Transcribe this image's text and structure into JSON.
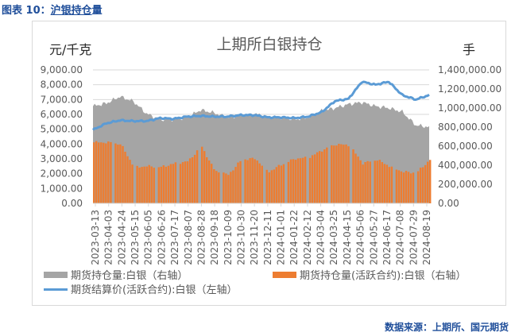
{
  "caption": {
    "prefix": "图表 10：",
    "title": "沪银持仓",
    "suffix": "量"
  },
  "source": "数据来源：上期所、国元期货",
  "chart_data": {
    "type": "combo",
    "title": "上期所白银持仓",
    "ylabel_left": "元/千克",
    "ylabel_right": "手",
    "ylim_left": [
      0,
      9000
    ],
    "ylim_right": [
      0,
      1400000
    ],
    "yticks_left": [
      "9,000.00",
      "8,000.00",
      "7,000.00",
      "6,000.00",
      "5,000.00",
      "4,000.00",
      "3,000.00",
      "2,000.00",
      "1,000.00",
      "0.00"
    ],
    "yticks_right": [
      "1,400,000.00",
      "1,200,000.00",
      "1,000,000.00",
      "800,000.00",
      "600,000.00",
      "400,000.00",
      "200,000.00",
      "0.00"
    ],
    "grid": true,
    "legend_position": "bottom",
    "categories": [
      "2023-03-13",
      "2023-04-03",
      "2023-04-24",
      "2023-05-15",
      "2023-06-05",
      "2023-06-26",
      "2023-07-17",
      "2023-08-07",
      "2023-08-28",
      "2023-09-18",
      "2023-10-09",
      "2023-10-30",
      "2023-11-20",
      "2023-12-11",
      "2024-01-01",
      "2024-01-22",
      "2024-02-12",
      "2024-03-04",
      "2024-03-25",
      "2024-04-15",
      "2024-05-06",
      "2024-05-27",
      "2024-06-17",
      "2024-07-08",
      "2024-07-29",
      "2024-08-19"
    ],
    "series": [
      {
        "name": "期货持仓量:白银（右轴）",
        "type": "area",
        "axis": "right",
        "color": "#a5a5a5",
        "values": [
          1020000,
          1050000,
          1120000,
          1070000,
          940000,
          880000,
          880000,
          900000,
          980000,
          950000,
          900000,
          920000,
          940000,
          910000,
          900000,
          880000,
          900000,
          970000,
          1000000,
          1040000,
          1060000,
          1020000,
          1000000,
          960000,
          820000,
          800000
        ]
      },
      {
        "name": "期货持仓量(活跃合约):白银（右轴）",
        "type": "bar",
        "axis": "right",
        "color": "#ed7d31",
        "values": [
          640000,
          640000,
          620000,
          380000,
          390000,
          380000,
          420000,
          440000,
          600000,
          340000,
          300000,
          460000,
          470000,
          330000,
          410000,
          470000,
          480000,
          560000,
          620000,
          610000,
          420000,
          460000,
          390000,
          330000,
          320000,
          460000
        ]
      },
      {
        "name": "期货结算价(活跃合约):白银（左轴）",
        "type": "line",
        "axis": "left",
        "color": "#5b9bd5",
        "values": [
          4950,
          5400,
          5600,
          5550,
          5550,
          5750,
          5700,
          5850,
          5900,
          5850,
          5850,
          5950,
          5950,
          5800,
          5800,
          5750,
          5850,
          6150,
          6900,
          7050,
          8200,
          8000,
          8200,
          7300,
          7000,
          7300
        ]
      }
    ]
  },
  "legend": [
    {
      "label": "期货持仓量:白银（右轴）",
      "color": "#a5a5a5",
      "kind": "area"
    },
    {
      "label": "期货持仓量(活跃合约):白银（右轴）",
      "color": "#ed7d31",
      "kind": "bar"
    },
    {
      "label": "期货结算价(活跃合约):白银（左轴）",
      "color": "#5b9bd5",
      "kind": "line"
    }
  ]
}
